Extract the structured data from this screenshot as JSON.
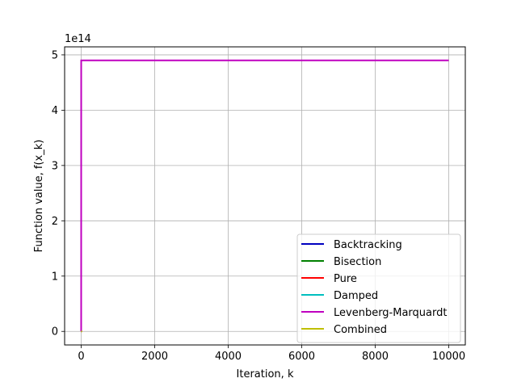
{
  "chart_data": {
    "type": "line",
    "title": "",
    "xlabel": "Iteration, k",
    "ylabel": "Function value, f(x_k)",
    "y_offset_label": "1e14",
    "y_scale_factor": 100000000000000.0,
    "xlim": [
      -450,
      10450
    ],
    "ylim": [
      -0.245,
      5.145
    ],
    "xticks": [
      0,
      2000,
      4000,
      6000,
      8000,
      10000
    ],
    "xtick_labels": [
      "0",
      "2000",
      "4000",
      "6000",
      "8000",
      "10000"
    ],
    "yticks": [
      0,
      1,
      2,
      3,
      4,
      5
    ],
    "ytick_labels": [
      "0",
      "1",
      "2",
      "3",
      "4",
      "5"
    ],
    "grid": true,
    "legend_position": "lower right",
    "series": [
      {
        "name": "Backtracking",
        "color": "#0000bf",
        "x": [
          0,
          1
        ],
        "y": [
          0,
          0
        ]
      },
      {
        "name": "Bisection",
        "color": "#008000",
        "x": [
          0,
          1
        ],
        "y": [
          0,
          0
        ]
      },
      {
        "name": "Pure",
        "color": "#ff0000",
        "x": [
          0,
          1
        ],
        "y": [
          0,
          0
        ]
      },
      {
        "name": "Damped",
        "color": "#00bfbf",
        "x": [
          0,
          1
        ],
        "y": [
          0,
          0
        ]
      },
      {
        "name": "Levenberg-Marquardt",
        "color": "#bf00bf",
        "x": [
          0,
          1,
          10000
        ],
        "y": [
          0,
          4.9,
          4.9
        ]
      },
      {
        "name": "Combined",
        "color": "#bfbf00",
        "x": [
          0,
          30
        ],
        "y": [
          0,
          0
        ]
      }
    ]
  }
}
